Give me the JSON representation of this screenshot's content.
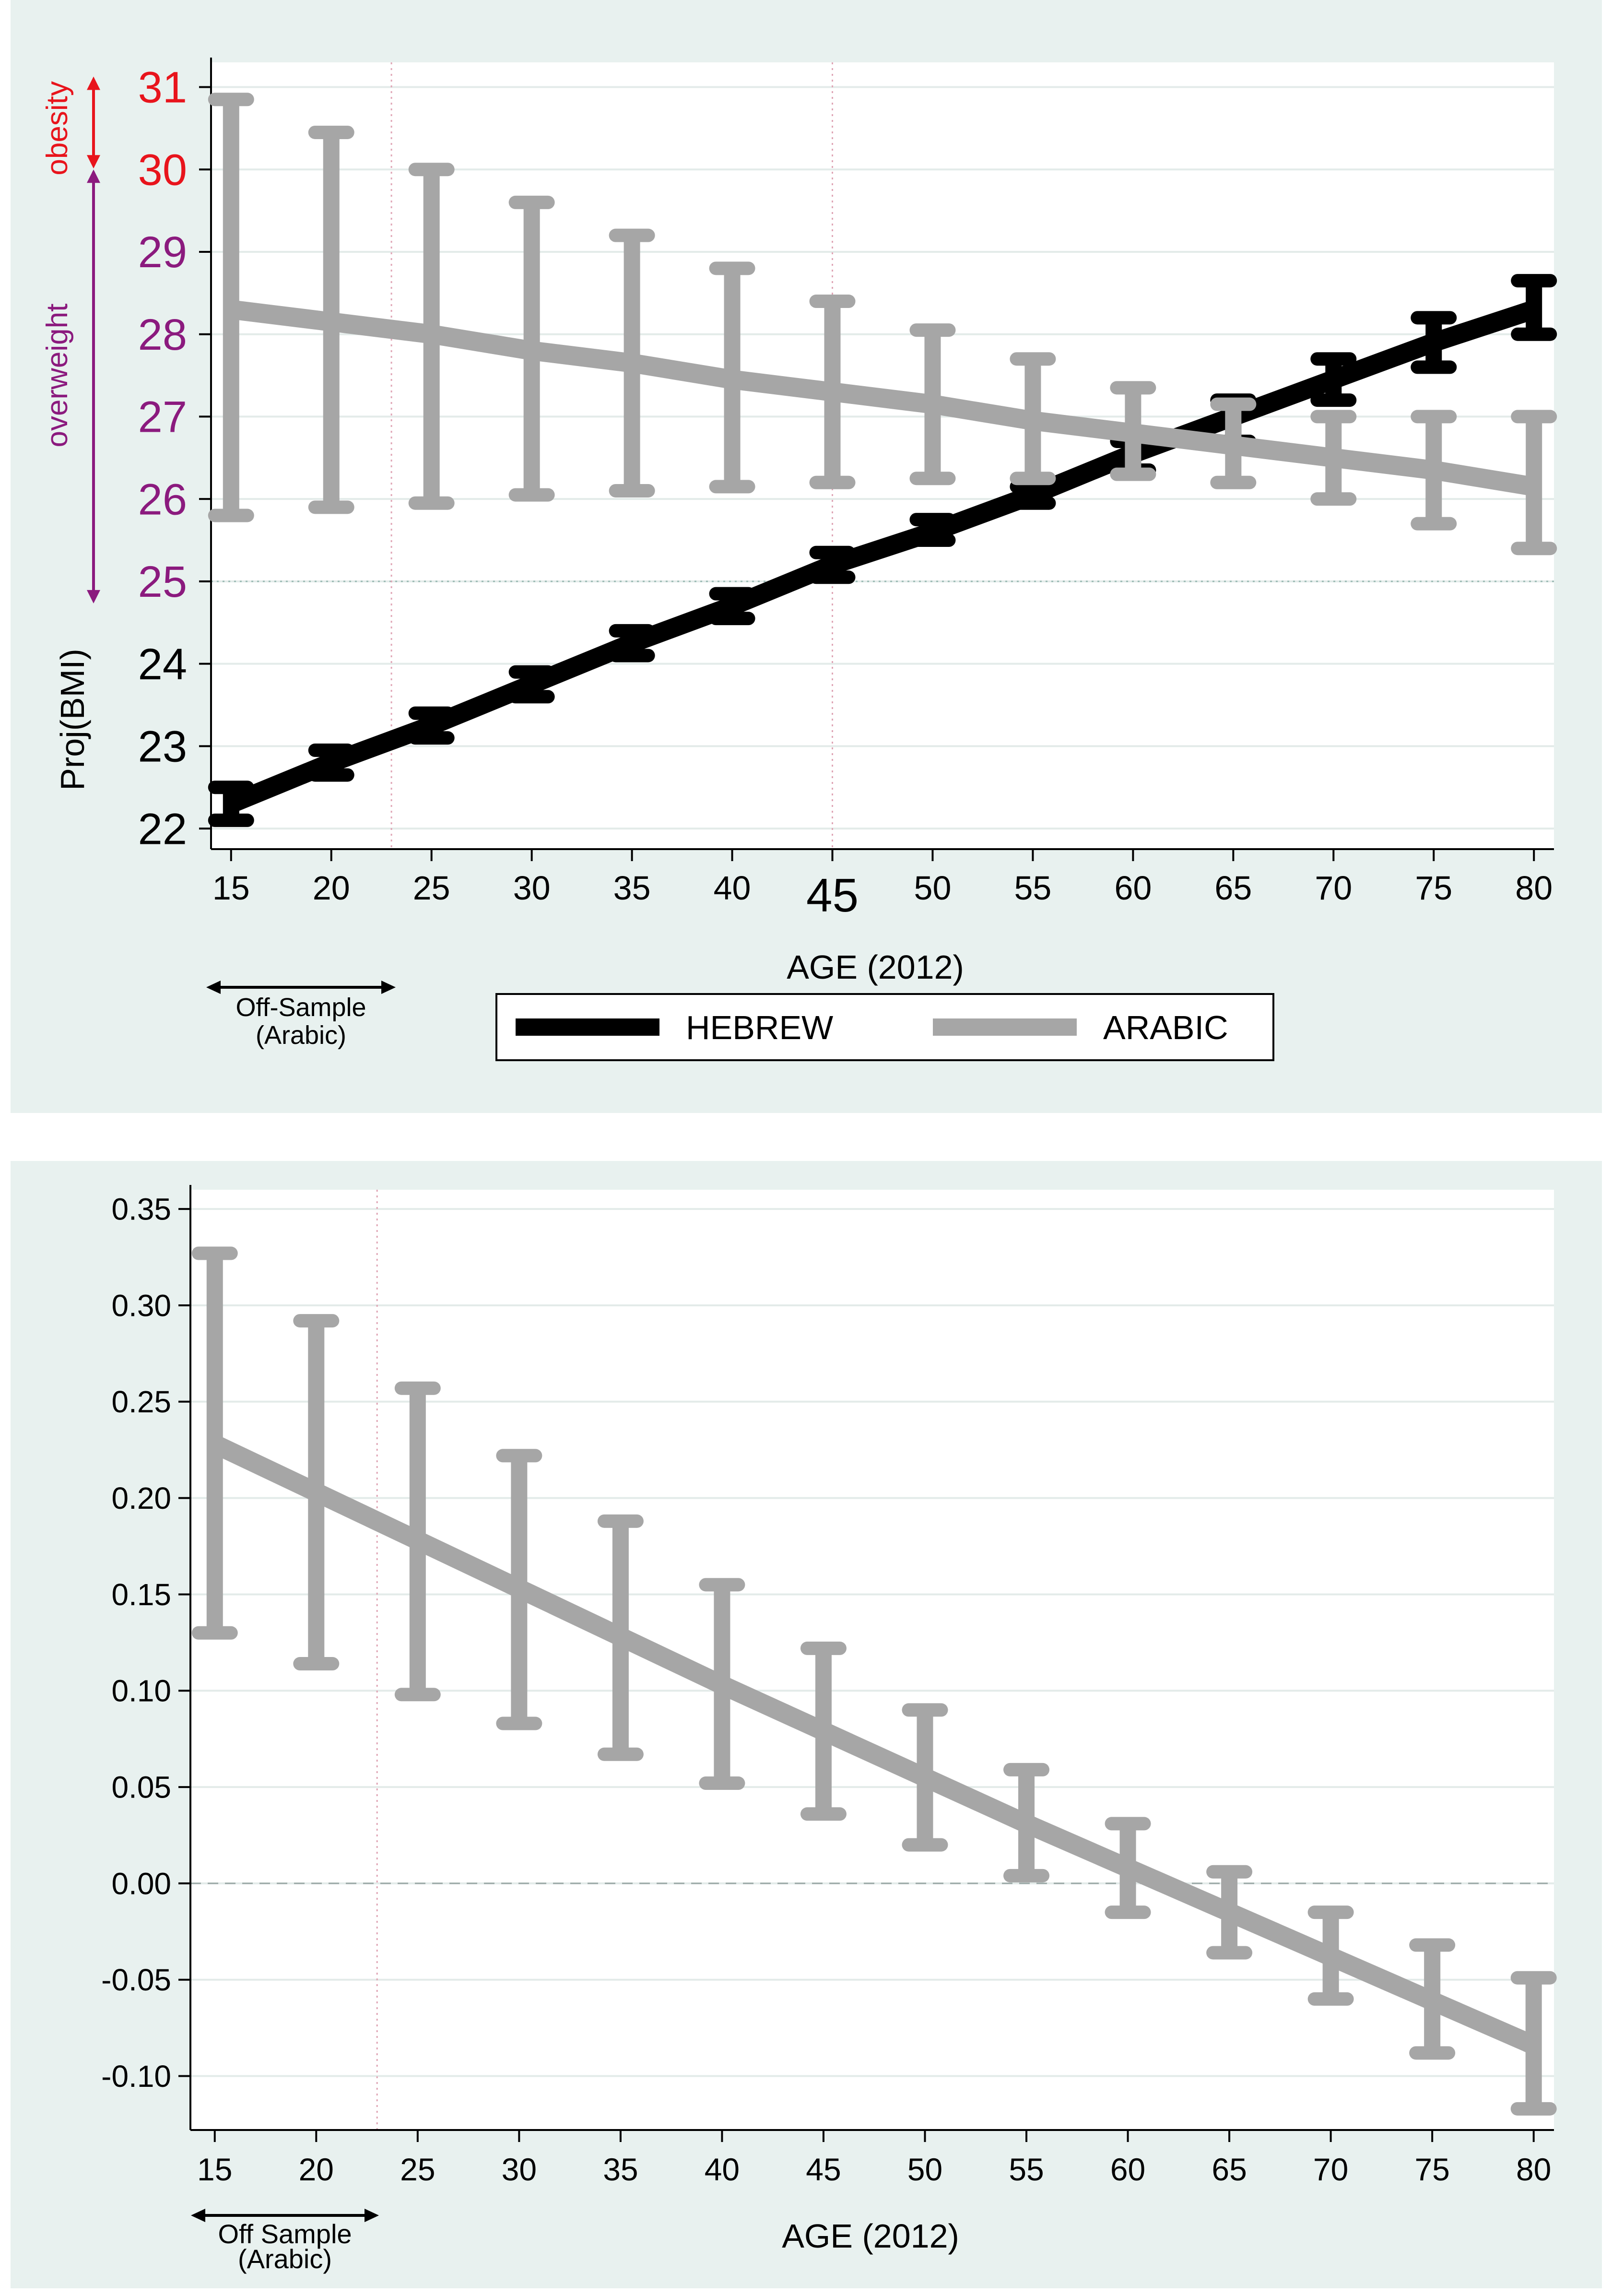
{
  "chart_data": [
    {
      "type": "line",
      "title": "",
      "xlabel": "AGE (2012)",
      "ylabel": "Proj(BMI)",
      "x": [
        15,
        20,
        25,
        30,
        35,
        40,
        45,
        50,
        55,
        60,
        65,
        70,
        75,
        80
      ],
      "xticks": [
        15,
        20,
        25,
        30,
        35,
        40,
        45,
        50,
        55,
        60,
        65,
        70,
        75,
        80
      ],
      "xtick_labels": [
        "15",
        "20",
        "25",
        "30",
        "35",
        "40",
        "45",
        "50",
        "55",
        "60",
        "65",
        "70",
        "75",
        "80"
      ],
      "highlight_tick": "45",
      "xlim": [
        14,
        81
      ],
      "ylim": [
        21.75,
        31.3
      ],
      "yticks": [
        22,
        23,
        24,
        25,
        26,
        27,
        28,
        29,
        30,
        31
      ],
      "ytick_labels": [
        "22",
        "23",
        "24",
        "25",
        "26",
        "27",
        "28",
        "29",
        "30",
        "31"
      ],
      "ytick_colors": [
        "#000000",
        "#000000",
        "#000000",
        "#8b1a7e",
        "#8b1a7e",
        "#8b1a7e",
        "#8b1a7e",
        "#8b1a7e",
        "#e8141c",
        "#e8141c"
      ],
      "grid": true,
      "series": [
        {
          "name": "HEBREW",
          "color": "#000000",
          "values": [
            22.3,
            22.8,
            23.25,
            23.75,
            24.25,
            24.7,
            25.2,
            25.6,
            26.05,
            26.55,
            27.0,
            27.45,
            27.9,
            28.3
          ],
          "lower": [
            22.1,
            22.65,
            23.1,
            23.6,
            24.1,
            24.55,
            25.05,
            25.5,
            25.95,
            26.35,
            26.7,
            27.2,
            27.6,
            28.0
          ],
          "upper": [
            22.5,
            22.95,
            23.4,
            23.9,
            24.4,
            24.85,
            25.35,
            25.75,
            26.15,
            26.7,
            27.2,
            27.7,
            28.2,
            28.65
          ]
        },
        {
          "name": "ARABIC",
          "color": "#a6a6a6",
          "values": [
            28.3,
            28.15,
            28.0,
            27.8,
            27.65,
            27.45,
            27.3,
            27.15,
            26.95,
            26.8,
            26.65,
            26.5,
            26.35,
            26.15
          ],
          "lower": [
            25.8,
            25.9,
            25.95,
            26.05,
            26.1,
            26.15,
            26.2,
            26.25,
            26.25,
            26.3,
            26.2,
            26.0,
            25.7,
            25.4
          ],
          "upper": [
            30.85,
            30.45,
            30.0,
            29.6,
            29.2,
            28.8,
            28.4,
            28.05,
            27.7,
            27.35,
            27.15,
            27.0,
            27.0,
            27.0
          ]
        }
      ],
      "legend": {
        "position": "bottom",
        "labels": [
          "HEBREW",
          "ARABIC"
        ]
      },
      "reference_lines": {
        "horizontal": 25,
        "vertical": [
          23,
          45
        ]
      },
      "annotations": {
        "obesity_label": "obesity",
        "obesity_range": [
          30,
          31
        ],
        "obesity_color": "#e8141c",
        "overweight_label": "overweight",
        "overweight_range": [
          25,
          30
        ],
        "overweight_color": "#8b1a7e",
        "off_sample_line1": "Off-Sample",
        "off_sample_line2": "(Arabic)",
        "off_sample_range": [
          15,
          23
        ]
      }
    },
    {
      "type": "line",
      "title": "",
      "xlabel": "AGE (2012)",
      "ylabel": "",
      "x": [
        15,
        20,
        25,
        30,
        35,
        40,
        45,
        50,
        55,
        60,
        65,
        70,
        75,
        80
      ],
      "xticks": [
        15,
        20,
        25,
        30,
        35,
        40,
        45,
        50,
        55,
        60,
        65,
        70,
        75,
        80
      ],
      "xtick_labels": [
        "15",
        "20",
        "25",
        "30",
        "35",
        "40",
        "45",
        "50",
        "55",
        "60",
        "65",
        "70",
        "75",
        "80"
      ],
      "xlim": [
        13.8,
        81
      ],
      "ylim": [
        -0.128,
        0.36
      ],
      "yticks": [
        -0.1,
        -0.05,
        0,
        0.05,
        0.1,
        0.15,
        0.2,
        0.25,
        0.3,
        0.35
      ],
      "ytick_labels": [
        "-0.10",
        "-0.05",
        "0.00",
        "0.05",
        "0.10",
        "0.15",
        "0.20",
        "0.25",
        "0.30",
        "0.35"
      ],
      "grid": true,
      "series": [
        {
          "name": "ARABIC",
          "color": "#a6a6a6",
          "values": [
            0.228,
            0.203,
            0.178,
            0.153,
            0.128,
            0.103,
            0.079,
            0.055,
            0.031,
            0.008,
            -0.015,
            -0.038,
            -0.061,
            -0.084
          ],
          "lower": [
            0.13,
            0.114,
            0.098,
            0.083,
            0.067,
            0.052,
            0.036,
            0.02,
            0.004,
            -0.015,
            -0.036,
            -0.06,
            -0.088,
            -0.117
          ],
          "upper": [
            0.327,
            0.292,
            0.257,
            0.222,
            0.188,
            0.155,
            0.122,
            0.09,
            0.059,
            0.031,
            0.006,
            -0.015,
            -0.032,
            -0.049
          ]
        }
      ],
      "reference_lines": {
        "horizontal": 0,
        "vertical": [
          23
        ]
      },
      "annotations": {
        "off_sample_line1": "Off Sample",
        "off_sample_line2": "(Arabic)",
        "off_sample_range": [
          14,
          23
        ]
      }
    }
  ]
}
